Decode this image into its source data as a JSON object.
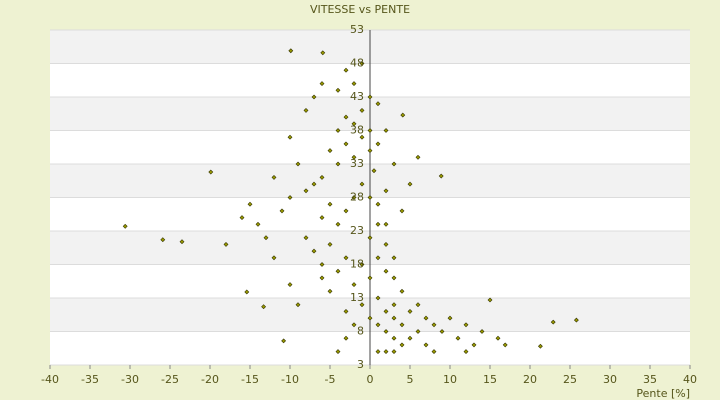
{
  "chart_data": {
    "type": "scatter",
    "title": "VITESSE vs PENTE",
    "x_label": "Pente [%]",
    "color": "#9a9a00",
    "grid": true,
    "xlim": [
      -40,
      40
    ],
    "xticks": [
      -40,
      -35,
      -30,
      -25,
      -20,
      -15,
      -10,
      -5,
      0,
      5,
      10,
      15,
      20,
      25,
      30,
      35,
      40
    ],
    "ylim": [
      3,
      53
    ],
    "yticks": [
      3,
      8,
      13,
      18,
      23,
      28,
      33,
      38,
      43,
      48,
      53
    ],
    "x": [
      -5,
      -4,
      -3,
      -2,
      -1,
      0,
      0.5,
      -6,
      -7,
      -8,
      -4,
      -3,
      -2,
      -1,
      0,
      1,
      -5,
      -6,
      -4,
      -3,
      -2,
      -1,
      0,
      1,
      2,
      -9,
      -10,
      -11,
      -8,
      -7,
      -6,
      -5,
      -4,
      -3,
      -2,
      -1,
      0,
      1,
      2,
      3,
      1,
      2,
      3,
      4,
      0,
      1,
      2,
      3,
      4,
      5,
      6,
      7,
      8,
      5,
      4,
      3,
      2,
      1,
      9,
      10,
      11,
      12,
      13,
      6,
      7,
      8,
      3,
      0,
      -1,
      -2,
      -3,
      -4,
      -5,
      -6,
      -12,
      -13,
      -14,
      -15,
      -16,
      -18,
      -10,
      -9,
      -2,
      -3,
      -4,
      -1,
      0,
      1,
      2,
      -7,
      -8,
      -6,
      -10,
      -12,
      3,
      5,
      6,
      4,
      2,
      -3,
      1,
      2,
      3,
      14,
      16,
      12,
      -30.6,
      -25.9,
      -23.5,
      -19.9,
      -9.9,
      -5.9,
      4.1,
      22.9,
      25.8,
      21.3,
      16.9,
      15,
      -15.4,
      -13.3,
      -10.8,
      8.9
    ],
    "values": [
      35,
      33,
      36,
      34,
      37,
      35,
      32,
      31,
      30,
      29,
      38,
      40,
      39,
      41,
      38,
      36,
      27,
      25,
      24,
      26,
      28,
      30,
      28,
      27,
      29,
      33,
      28,
      26,
      22,
      20,
      18,
      21,
      17,
      19,
      15,
      18,
      22,
      24,
      21,
      19,
      19,
      17,
      16,
      14,
      16,
      13,
      11,
      10,
      9,
      11,
      8,
      10,
      9,
      7,
      6,
      7,
      8,
      9,
      8,
      10,
      7,
      9,
      6,
      12,
      6,
      5,
      12,
      10,
      12,
      9,
      7,
      5,
      14,
      16,
      19,
      22,
      24,
      27,
      25,
      21,
      15,
      12,
      45,
      47,
      44,
      48,
      43,
      42,
      38,
      43,
      41,
      45,
      37,
      31,
      33,
      30,
      34,
      26,
      24,
      11,
      5,
      5,
      5,
      8,
      7,
      5,
      23.7,
      21.7,
      21.4,
      31.8,
      49.9,
      49.6,
      40.3,
      9.4,
      9.7,
      5.8,
      6,
      12.7,
      13.9,
      11.7,
      6.6,
      31.2
    ]
  }
}
